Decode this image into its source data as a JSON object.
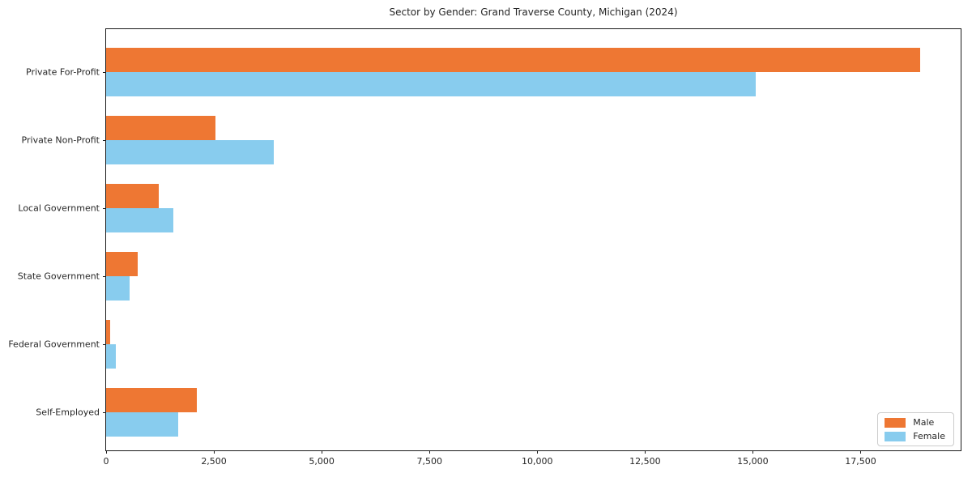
{
  "chart_data": {
    "type": "bar",
    "orientation": "horizontal",
    "title": "Sector by Gender: Grand Traverse County, Michigan (2024)",
    "categories": [
      "Private For-Profit",
      "Private Non-Profit",
      "Local Government",
      "State Government",
      "Federal Government",
      "Self-Employed"
    ],
    "series": [
      {
        "name": "Male",
        "color": "#EE7733",
        "values": [
          18880,
          2540,
          1220,
          730,
          95,
          2110
        ]
      },
      {
        "name": "Female",
        "color": "#88CCEE",
        "values": [
          15060,
          3880,
          1550,
          545,
          230,
          1670
        ]
      }
    ],
    "xlim": [
      0,
      19820
    ],
    "xticks": [
      0,
      2500,
      5000,
      7500,
      10000,
      12500,
      15000,
      17500
    ],
    "xtick_labels": [
      "0",
      "2,500",
      "5,000",
      "7,500",
      "10,000",
      "12,500",
      "15,000",
      "17,500"
    ],
    "ylabel": "",
    "xlabel": "",
    "grid": false,
    "legend": {
      "position": "lower right",
      "entries": [
        "Male",
        "Female"
      ]
    }
  }
}
